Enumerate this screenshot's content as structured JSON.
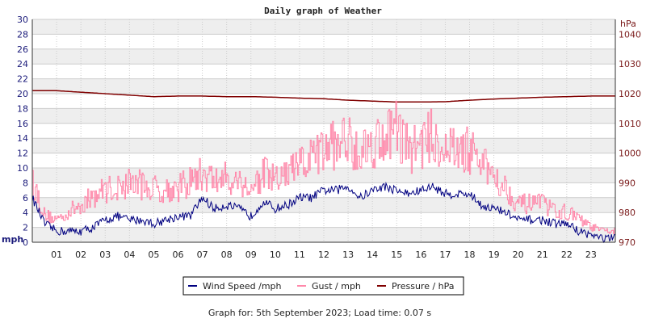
{
  "chart_data": {
    "type": "line",
    "title": "Daily graph of Weather",
    "y_left": {
      "label": "mph",
      "ylim": [
        0,
        30
      ],
      "ticks": [
        0,
        2,
        4,
        6,
        8,
        10,
        12,
        14,
        16,
        18,
        20,
        22,
        24,
        26,
        28,
        30
      ]
    },
    "y_right": {
      "label": "hPa",
      "ylim": [
        970,
        1045
      ],
      "ticks": [
        970,
        980,
        990,
        1000,
        1010,
        1020,
        1030,
        1040
      ]
    },
    "x": {
      "label": "",
      "xlim": [
        0,
        24
      ],
      "tick_labels": [
        "01",
        "02",
        "03",
        "04",
        "05",
        "06",
        "07",
        "08",
        "09",
        "10",
        "11",
        "12",
        "13",
        "14",
        "15",
        "16",
        "17",
        "18",
        "19",
        "20",
        "21",
        "22",
        "23"
      ]
    },
    "grid": true,
    "legend_position": "bottom-center",
    "series": [
      {
        "name": "Wind Speed /mph",
        "axis": "left",
        "color": "#000080",
        "x": [
          0,
          0.5,
          1,
          1.5,
          2,
          2.5,
          3,
          3.5,
          4,
          4.5,
          5,
          5.5,
          6,
          6.5,
          7,
          7.5,
          8,
          8.5,
          9,
          9.5,
          10,
          10.5,
          11,
          11.5,
          12,
          12.5,
          13,
          13.5,
          14,
          14.5,
          15,
          15.5,
          16,
          16.5,
          17,
          17.5,
          18,
          18.5,
          19,
          19.5,
          20,
          20.5,
          21,
          21.5,
          22,
          22.5,
          23,
          23.5,
          24
        ],
        "values": [
          6,
          2.5,
          1.5,
          1.5,
          1.5,
          2,
          3,
          3.5,
          3,
          3,
          2.5,
          3,
          3.5,
          3.5,
          6,
          4.5,
          5,
          4.5,
          3.5,
          5.5,
          4.5,
          5,
          6,
          6,
          7,
          7,
          7.5,
          6,
          7,
          7.5,
          7,
          6.5,
          7,
          7.5,
          6.5,
          6.5,
          6.5,
          5,
          4.5,
          4,
          3,
          3,
          3,
          2.5,
          2.5,
          1.5,
          1,
          0.5,
          0.5
        ]
      },
      {
        "name": "Gust / mph",
        "axis": "left",
        "color": "#ff88aa",
        "x": [
          0,
          0.5,
          1,
          1.5,
          2,
          2.5,
          3,
          3.5,
          4,
          4.5,
          5,
          5.5,
          6,
          6.5,
          7,
          7.5,
          8,
          8.5,
          9,
          9.5,
          10,
          10.5,
          11,
          11.5,
          12,
          12.5,
          13,
          13.5,
          14,
          14.5,
          15,
          15.5,
          16,
          16.5,
          17,
          17.5,
          18,
          18.5,
          19,
          19.5,
          20,
          20.5,
          21,
          21.5,
          22,
          22.5,
          23,
          23.5,
          24
        ],
        "values": [
          8,
          3.5,
          3,
          4,
          5,
          6,
          7,
          7,
          8,
          7.5,
          7,
          7,
          7,
          8,
          9,
          8,
          8.5,
          8,
          7,
          9,
          8,
          9,
          10,
          11,
          12,
          13,
          13.5,
          12,
          13,
          14,
          15,
          12,
          13,
          14,
          12,
          12,
          12,
          10,
          9,
          7,
          5,
          5,
          5,
          4,
          4,
          3,
          2,
          1.5,
          1.5
        ]
      },
      {
        "name": "Pressure / hPa",
        "axis": "right",
        "color": "#800000",
        "x": [
          0,
          1,
          2,
          3,
          4,
          5,
          6,
          7,
          8,
          9,
          10,
          11,
          12,
          13,
          14,
          15,
          16,
          17,
          18,
          19,
          20,
          21,
          22,
          23,
          24
        ],
        "values": [
          1021,
          1021,
          1020.5,
          1020,
          1019.5,
          1019,
          1019.2,
          1019.2,
          1019,
          1019,
          1018.8,
          1018.5,
          1018.3,
          1017.8,
          1017.5,
          1017.2,
          1017.2,
          1017.3,
          1017.8,
          1018.2,
          1018.5,
          1018.8,
          1019,
          1019.2,
          1019.2
        ]
      }
    ]
  },
  "footer": "Graph for: 5th September 2023; Load time: 0.07 s"
}
